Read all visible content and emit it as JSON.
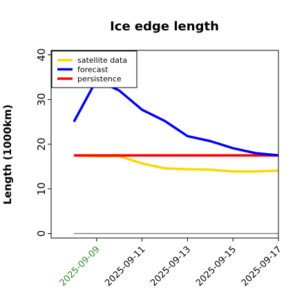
{
  "chart_data": {
    "type": "line",
    "title": "Ice edge length",
    "xlabel": "",
    "ylabel": "Length (1000km)",
    "x": [
      "2025-09-08",
      "2025-09-09",
      "2025-09-10",
      "2025-09-11",
      "2025-09-12",
      "2025-09-13",
      "2025-09-14",
      "2025-09-15",
      "2025-09-16",
      "2025-09-17"
    ],
    "xlim": [
      "2025-09-07",
      "2025-09-17"
    ],
    "ylim": [
      -1,
      41
    ],
    "yticks": [
      0,
      10,
      20,
      30,
      40
    ],
    "xtick_labels": [
      "2025-09-09",
      "2025-09-11",
      "2025-09-13",
      "2025-09-15",
      "2025-09-17"
    ],
    "xtick_colors": [
      "#2e8b2e",
      "#000000",
      "#000000",
      "#000000",
      "#000000"
    ],
    "grid": false,
    "legend_position": "top-left",
    "series": [
      {
        "name": "satellite data",
        "color": "#ffd700",
        "values": [
          17.5,
          17.3,
          17.3,
          15.7,
          14.6,
          14.4,
          14.3,
          13.9,
          13.9,
          14.1
        ]
      },
      {
        "name": "forecast",
        "color": "#0000ff",
        "values": [
          25.0,
          34.4,
          32.0,
          27.7,
          25.2,
          21.8,
          20.7,
          19.1,
          18.0,
          17.5
        ]
      },
      {
        "name": "persistence",
        "color": "#ff0000",
        "values": [
          17.5,
          17.5,
          17.5,
          17.5,
          17.5,
          17.5,
          17.5,
          17.5,
          17.5,
          17.5
        ]
      }
    ],
    "baseline": {
      "value": 0,
      "color": "#808080"
    }
  }
}
